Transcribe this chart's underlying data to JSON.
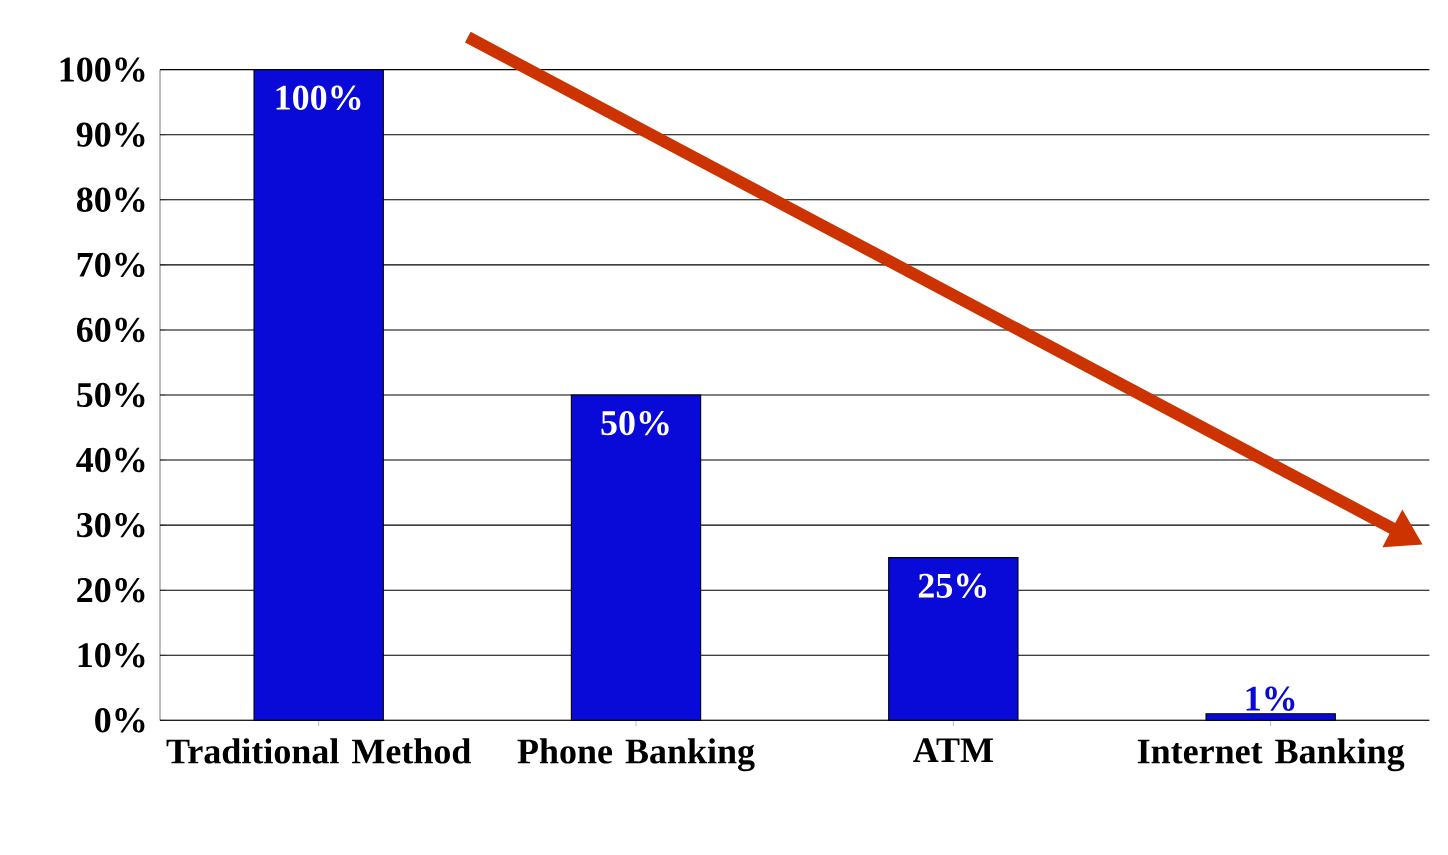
{
  "chart_data": {
    "type": "bar",
    "categories": [
      "Traditional Method",
      "Phone Banking",
      "ATM",
      "Internet Banking"
    ],
    "values": [
      100,
      50,
      25,
      1
    ],
    "color": "#0a0ad8",
    "value_labels": [
      "100%",
      "50%",
      "25%",
      "1%"
    ],
    "ylim": [
      0,
      100
    ],
    "yticks": [
      {
        "value": 0,
        "label": "0%"
      },
      {
        "value": 10,
        "label": "10%"
      },
      {
        "value": 20,
        "label": "20%"
      },
      {
        "value": 30,
        "label": "30%"
      },
      {
        "value": 40,
        "label": "40%"
      },
      {
        "value": 50,
        "label": "50%"
      },
      {
        "value": 60,
        "label": "60%"
      },
      {
        "value": 70,
        "label": "70%"
      },
      {
        "value": 80,
        "label": "80%"
      },
      {
        "value": 90,
        "label": "90%"
      },
      {
        "value": 100,
        "label": "100%"
      }
    ],
    "grid": "y"
  }
}
